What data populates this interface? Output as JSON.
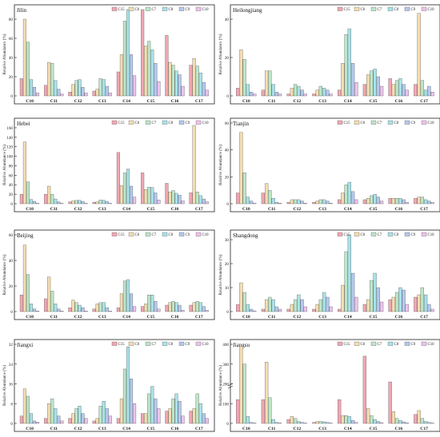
{
  "legend_labels": [
    "C15",
    "C6",
    "C7",
    "C8",
    "C9",
    "C10"
  ],
  "series_colors": [
    "#f2a6b3",
    "#f5ddb0",
    "#bce7c8",
    "#a9e2ea",
    "#b3c9ef",
    "#f0c2ee"
  ],
  "ylabel": "Relative Abundance (%)",
  "chart_data": [
    {
      "type": "bar",
      "title": "Jilin",
      "categories": [
        "C10",
        "C11",
        "C12",
        "C13",
        "C14",
        "C15",
        "C16",
        "C17"
      ],
      "ylim": [
        0,
        90
      ],
      "yticks": [
        0,
        20,
        40,
        60,
        80
      ],
      "series": [
        {
          "name": "C15",
          "values": [
            18,
            11,
            4,
            5,
            25,
            91,
            63,
            32
          ]
        },
        {
          "name": "C6",
          "values": [
            80,
            35,
            12,
            7,
            43,
            52,
            35,
            39
          ]
        },
        {
          "name": "C7",
          "values": [
            56,
            34,
            16,
            18,
            78,
            57,
            32,
            31
          ]
        },
        {
          "name": "C8",
          "values": [
            17,
            16,
            17,
            17,
            90,
            48,
            26,
            24
          ]
        },
        {
          "name": "C9",
          "values": [
            9,
            7,
            9,
            10,
            43,
            34,
            22,
            14
          ]
        },
        {
          "name": "C10",
          "values": [
            3,
            2,
            3,
            3,
            21,
            15,
            10,
            6
          ]
        }
      ]
    },
    {
      "type": "bar",
      "title": "Heilongjiang",
      "categories": [
        "C10",
        "C11",
        "C12",
        "C13",
        "C14",
        "C15",
        "C16",
        "C17"
      ],
      "ylim": [
        0,
        45
      ],
      "yticks": [
        0,
        20,
        40
      ],
      "series": [
        {
          "name": "C15",
          "values": [
            4,
            3,
            1,
            1,
            3,
            6,
            9,
            6
          ]
        },
        {
          "name": "C6",
          "values": [
            24,
            13,
            4,
            3,
            17,
            11,
            6,
            43
          ]
        },
        {
          "name": "C7",
          "values": [
            19,
            13,
            6,
            5,
            32,
            13,
            8,
            8
          ]
        },
        {
          "name": "C8",
          "values": [
            6,
            6,
            5,
            4,
            35,
            14,
            9,
            3
          ]
        },
        {
          "name": "C9",
          "values": [
            2,
            2,
            3,
            3,
            17,
            10,
            6,
            5
          ]
        },
        {
          "name": "C10",
          "values": [
            1,
            1,
            1,
            1,
            7,
            5,
            3,
            2
          ]
        }
      ]
    },
    {
      "type": "bar",
      "title": "Hebei",
      "categories": [
        "C10",
        "C11",
        "C12",
        "C13",
        "C14",
        "C15",
        "C16",
        "C17"
      ],
      "ylim": [
        0,
        170
      ],
      "yticks": [
        0,
        20,
        40,
        60,
        80,
        100,
        120,
        140,
        160
      ],
      "series": [
        {
          "name": "C15",
          "values": [
            20,
            20,
            4,
            3,
            108,
            65,
            43,
            23
          ]
        },
        {
          "name": "C6",
          "values": [
            130,
            37,
            6,
            4,
            38,
            30,
            25,
            165
          ]
        },
        {
          "name": "C7",
          "values": [
            46,
            20,
            7,
            8,
            65,
            35,
            28,
            25
          ]
        },
        {
          "name": "C8",
          "values": [
            9,
            10,
            7,
            7,
            73,
            34,
            22,
            17
          ]
        },
        {
          "name": "C9",
          "values": [
            5,
            4,
            5,
            5,
            37,
            23,
            18,
            10
          ]
        },
        {
          "name": "C10",
          "values": [
            1,
            1,
            1,
            1,
            14,
            8,
            6,
            4
          ]
        }
      ]
    },
    {
      "type": "bar",
      "title": "Tianjin",
      "categories": [
        "C10",
        "C11",
        "C12",
        "C13",
        "C14",
        "C15",
        "C16",
        "C17"
      ],
      "ylim": [
        0,
        60
      ],
      "yticks": [
        0,
        20,
        40,
        60
      ],
      "series": [
        {
          "name": "C15",
          "values": [
            8,
            8,
            1,
            1,
            3,
            3,
            4,
            4
          ]
        },
        {
          "name": "C6",
          "values": [
            53,
            15,
            3,
            2,
            8,
            4,
            4,
            5
          ]
        },
        {
          "name": "C7",
          "values": [
            23,
            10,
            3,
            3,
            14,
            6,
            4,
            5
          ]
        },
        {
          "name": "C8",
          "values": [
            5,
            4,
            3,
            3,
            16,
            7,
            4,
            3
          ]
        },
        {
          "name": "C9",
          "values": [
            2,
            1,
            2,
            2,
            9,
            5,
            3,
            2
          ]
        },
        {
          "name": "C10",
          "values": [
            0.5,
            0.5,
            0.5,
            0.5,
            3,
            2,
            1,
            1
          ]
        }
      ]
    },
    {
      "type": "bar",
      "title": "Beijing",
      "categories": [
        "C10",
        "C11",
        "C12",
        "C13",
        "C14",
        "C15",
        "C16",
        "C17"
      ],
      "ylim": [
        0,
        60
      ],
      "yticks": [
        0,
        20,
        40,
        60
      ],
      "series": [
        {
          "name": "C15",
          "values": [
            13,
            10,
            3,
            2,
            3,
            4,
            5,
            5
          ]
        },
        {
          "name": "C6",
          "values": [
            52,
            27,
            9,
            6,
            14,
            6,
            7,
            7
          ]
        },
        {
          "name": "C7",
          "values": [
            29,
            16,
            7,
            7,
            24,
            13,
            8,
            8
          ]
        },
        {
          "name": "C8",
          "values": [
            6,
            6,
            5,
            7,
            25,
            13,
            7,
            7
          ]
        },
        {
          "name": "C9",
          "values": [
            2,
            2,
            3,
            3,
            14,
            8,
            5,
            4
          ]
        },
        {
          "name": "C10",
          "values": [
            0.5,
            0.5,
            0.5,
            0.5,
            4,
            2,
            1,
            1
          ]
        }
      ]
    },
    {
      "type": "bar",
      "title": "Shangdong",
      "categories": [
        "C10",
        "C11",
        "C12",
        "C13",
        "C14",
        "C15",
        "C16",
        "C17"
      ],
      "ylim": [
        0,
        32
      ],
      "yticks": [
        0,
        10,
        20,
        30
      ],
      "series": [
        {
          "name": "C15",
          "values": [
            3,
            1,
            1,
            1,
            1,
            3,
            5,
            6
          ]
        },
        {
          "name": "C6",
          "values": [
            12,
            5,
            3,
            3,
            11,
            5,
            6,
            7
          ]
        },
        {
          "name": "C7",
          "values": [
            8,
            6,
            5,
            5,
            25,
            13,
            8,
            10
          ]
        },
        {
          "name": "C8",
          "values": [
            3,
            5,
            7,
            8,
            32,
            16,
            10,
            7
          ]
        },
        {
          "name": "C9",
          "values": [
            1,
            2,
            5,
            6,
            16,
            10,
            9,
            3
          ]
        },
        {
          "name": "C10",
          "values": [
            0.3,
            1,
            2,
            2,
            6,
            4,
            3,
            1
          ]
        }
      ]
    },
    {
      "type": "bar",
      "title": "Jiangxi",
      "categories": [
        "C10",
        "C11",
        "C12",
        "C13",
        "C14",
        "C15",
        "C16",
        "C17"
      ],
      "ylim": [
        0,
        32
      ],
      "yticks": [
        0,
        8,
        16,
        24,
        32
      ],
      "series": [
        {
          "name": "C15",
          "values": [
            3,
            2,
            2,
            1,
            2,
            4,
            5,
            5
          ]
        },
        {
          "name": "C6",
          "values": [
            14,
            8,
            4,
            2,
            10,
            4,
            6,
            6
          ]
        },
        {
          "name": "C7",
          "values": [
            11,
            10,
            6,
            7,
            22,
            12,
            10,
            12
          ]
        },
        {
          "name": "C8",
          "values": [
            4,
            6,
            7,
            9,
            31,
            15,
            12,
            8
          ]
        },
        {
          "name": "C9",
          "values": [
            1,
            3,
            4,
            6,
            18,
            10,
            9,
            4
          ]
        },
        {
          "name": "C10",
          "values": [
            0.5,
            1,
            2,
            3,
            8,
            6,
            3,
            2
          ]
        }
      ]
    },
    {
      "type": "bar",
      "title": "Jiangsu",
      "categories": [
        "C10",
        "C11",
        "C12",
        "C13",
        "C14",
        "C15",
        "C16",
        "C17"
      ],
      "ylim": [
        0,
        400
      ],
      "yticks": [
        0,
        100,
        200,
        300,
        400
      ],
      "series": [
        {
          "name": "C15",
          "values": [
            120,
            120,
            20,
            5,
            120,
            340,
            210,
            45
          ]
        },
        {
          "name": "C6",
          "values": [
            390,
            310,
            35,
            10,
            40,
            75,
            60,
            65
          ]
        },
        {
          "name": "C7",
          "values": [
            300,
            130,
            25,
            10,
            40,
            40,
            25,
            25
          ]
        },
        {
          "name": "C8",
          "values": [
            35,
            20,
            10,
            8,
            35,
            20,
            15,
            10
          ]
        },
        {
          "name": "C9",
          "values": [
            5,
            5,
            5,
            5,
            15,
            10,
            8,
            5
          ]
        },
        {
          "name": "C10",
          "values": [
            2,
            2,
            2,
            2,
            5,
            4,
            3,
            2
          ]
        }
      ]
    }
  ]
}
